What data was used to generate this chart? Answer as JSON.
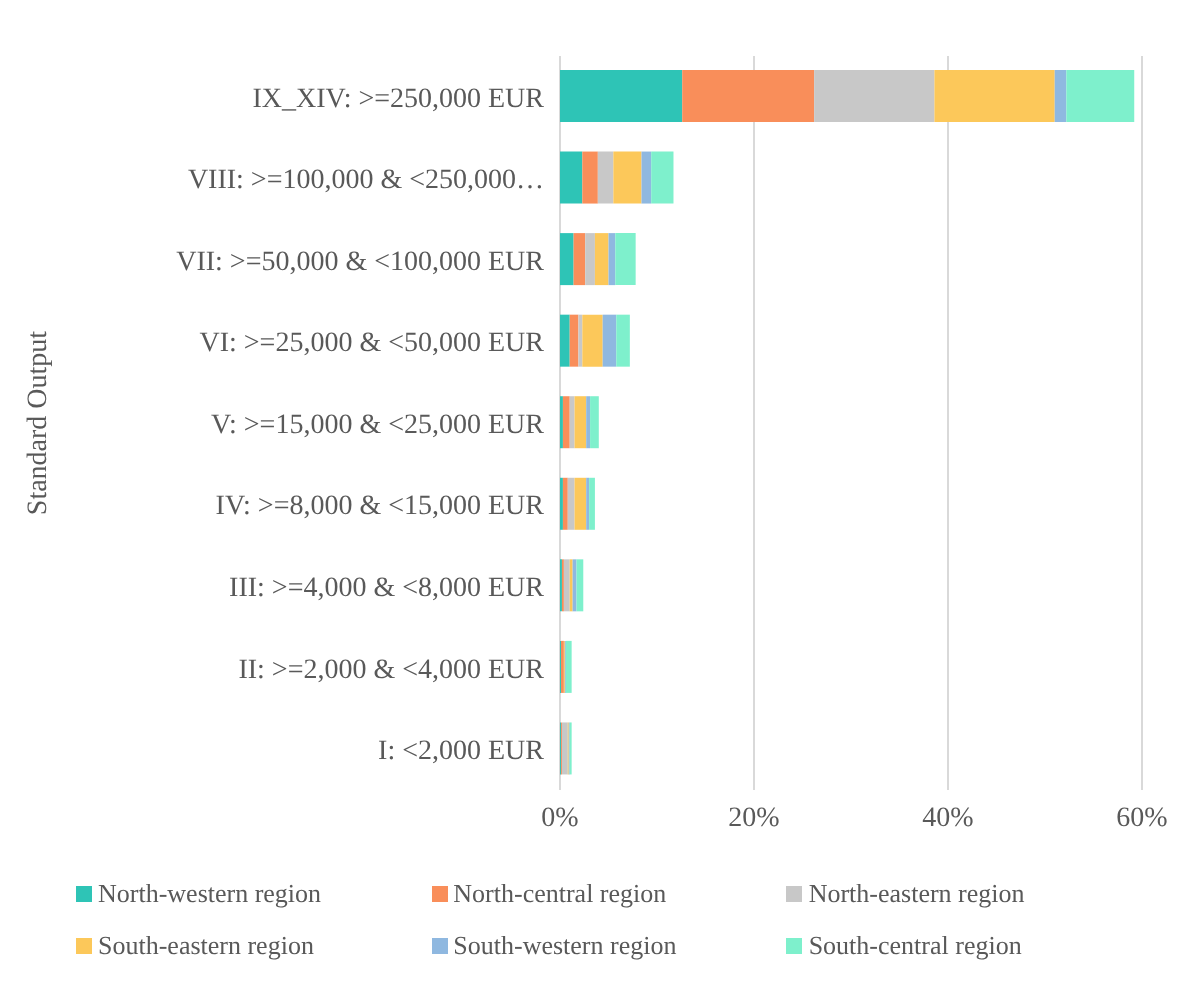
{
  "chart_data": {
    "type": "bar",
    "orientation": "horizontal",
    "stacked": true,
    "ylabel": "Standard Output",
    "categories": [
      "IX_XIV: >=250,000 EUR",
      "VIII: >=100,000 & <250,000…",
      "VII: >=50,000 & <100,000 EUR",
      "VI: >=25,000 & <50,000 EUR",
      "V: >=15,000 & <25,000 EUR",
      "IV: >=8,000 & <15,000 EUR",
      "III: >=4,000 & <8,000 EUR",
      "II: >=2,000 & <4,000 EUR",
      "I: <2,000 EUR"
    ],
    "series": [
      {
        "name": "North-western region",
        "color": "#2ec4b6",
        "values": [
          12.6,
          2.3,
          1.4,
          1.0,
          0.3,
          0.3,
          0.2,
          0.1,
          0.1
        ]
      },
      {
        "name": "North-central region",
        "color": "#f98e5a",
        "values": [
          13.6,
          1.6,
          1.2,
          0.9,
          0.7,
          0.5,
          0.2,
          0.3,
          0.1
        ]
      },
      {
        "name": "North-eastern region",
        "color": "#c8c8c8",
        "values": [
          12.4,
          1.6,
          1.0,
          0.4,
          0.5,
          0.7,
          0.6,
          null,
          0.6
        ]
      },
      {
        "name": "South-eastern region",
        "color": "#fcc85a",
        "values": [
          12.4,
          2.9,
          1.4,
          2.1,
          1.2,
          1.2,
          0.3,
          0.1,
          0.1
        ]
      },
      {
        "name": "South-western region",
        "color": "#8fb8e0",
        "values": [
          1.2,
          1.0,
          0.7,
          1.4,
          0.4,
          0.3,
          0.4,
          0.1,
          0.1
        ]
      },
      {
        "name": "South-central region",
        "color": "#7ef0cc",
        "values": [
          7.0,
          2.3,
          2.1,
          1.4,
          0.9,
          0.6,
          0.7,
          0.6,
          0.2
        ]
      }
    ],
    "xlim": [
      0,
      60
    ],
    "xticks": [
      {
        "value": 0,
        "label": "0%"
      },
      {
        "value": 20,
        "label": "20%"
      },
      {
        "value": 40,
        "label": "40%"
      },
      {
        "value": 60,
        "label": "60%"
      }
    ],
    "grid": "x",
    "legend": "bottom"
  }
}
